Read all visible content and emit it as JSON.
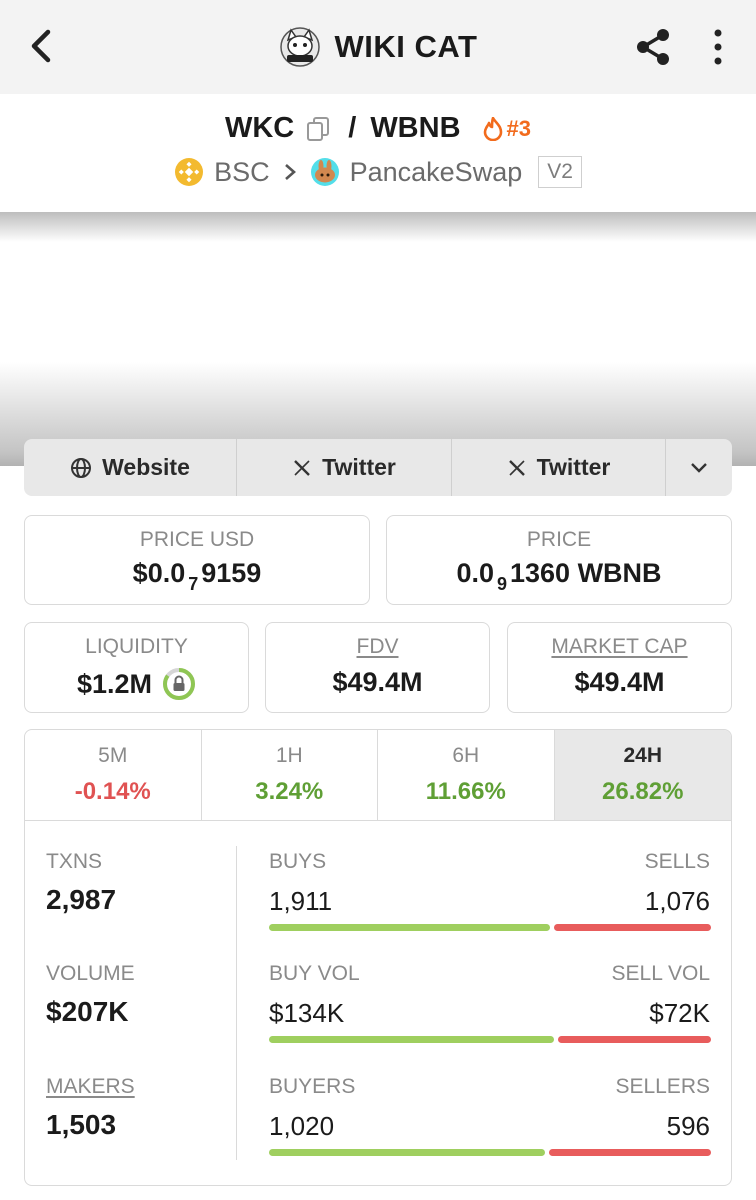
{
  "header": {
    "title": "WIKI CAT"
  },
  "pair": {
    "base": "WKC",
    "quote": "WBNB",
    "rank": "#3",
    "chain": "BSC",
    "dex": "PancakeSwap",
    "dex_version": "V2"
  },
  "links": [
    {
      "label": "Website",
      "icon": "globe-icon"
    },
    {
      "label": "Twitter",
      "icon": "x-logo-icon"
    },
    {
      "label": "Twitter",
      "icon": "x-logo-icon"
    }
  ],
  "price_usd": {
    "label": "PRICE USD",
    "prefix": "$0.0",
    "zeros": "7",
    "digits": "9159"
  },
  "price_native": {
    "label": "PRICE",
    "prefix": "0.0",
    "zeros": "9",
    "digits": "1360 WBNB"
  },
  "liquidity": {
    "label": "LIQUIDITY",
    "value": "$1.2M",
    "locked_fraction": 0.85
  },
  "fdv": {
    "label": "FDV",
    "value": "$49.4M"
  },
  "market_cap": {
    "label": "MARKET CAP",
    "value": "$49.4M"
  },
  "periods": [
    {
      "label": "5M",
      "change": "-0.14%"
    },
    {
      "label": "1H",
      "change": "3.24%"
    },
    {
      "label": "6H",
      "change": "11.66%"
    },
    {
      "label": "24H",
      "change": "26.82%"
    }
  ],
  "stats": {
    "txns": {
      "label": "TXNS",
      "value": "2,987",
      "buys_label": "BUYS",
      "buys": "1,911",
      "sells_label": "SELLS",
      "sells": "1,076",
      "buy_fraction": 0.64
    },
    "volume": {
      "label": "VOLUME",
      "value": "$207K",
      "buys_label": "BUY VOL",
      "buys": "$134K",
      "sells_label": "SELL VOL",
      "sells": "$72K",
      "buy_fraction": 0.65
    },
    "makers": {
      "label": "MAKERS",
      "value": "1,503",
      "buys_label": "BUYERS",
      "buys": "1,020",
      "sells_label": "SELLERS",
      "sells": "596",
      "buy_fraction": 0.63
    }
  },
  "colors": {
    "positive": "#5f9f35",
    "negative": "#e05252",
    "buy_bar": "#9fcf5f",
    "sell_bar": "#e85c5c",
    "rank": "#f26b1d"
  }
}
